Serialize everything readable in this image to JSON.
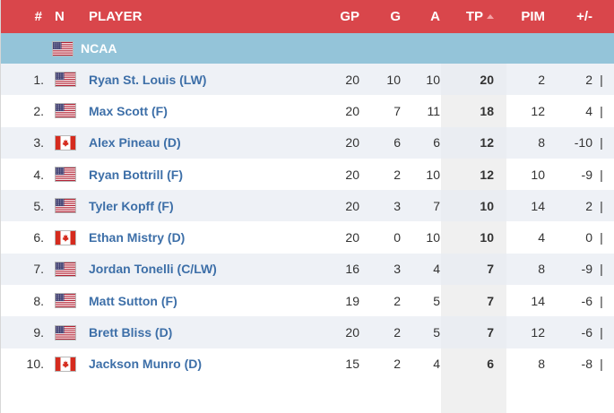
{
  "header": {
    "rank": "#",
    "nationality": "N",
    "player": "PLAYER",
    "gp": "GP",
    "g": "G",
    "a": "A",
    "tp": "TP",
    "pim": "PIM",
    "plus_minus": "+/-"
  },
  "group": {
    "label": "NCAA",
    "flag": "usa-flag-icon"
  },
  "colors": {
    "header_bg": "#d9464b",
    "group_bg": "#94c4d9",
    "link": "#3d6fa8",
    "tp_column_bg": "#f0f0f0"
  },
  "rows": [
    {
      "rank": "1.",
      "flag": "usa",
      "player": "Ryan St. Louis (LW)",
      "gp": "20",
      "g": "10",
      "a": "10",
      "tp": "20",
      "pim": "2",
      "pm": "2",
      "sep": "|"
    },
    {
      "rank": "2.",
      "flag": "usa",
      "player": "Max Scott (F)",
      "gp": "20",
      "g": "7",
      "a": "11",
      "tp": "18",
      "pim": "12",
      "pm": "4",
      "sep": "|"
    },
    {
      "rank": "3.",
      "flag": "can",
      "player": "Alex Pineau (D)",
      "gp": "20",
      "g": "6",
      "a": "6",
      "tp": "12",
      "pim": "8",
      "pm": "-10",
      "sep": "|"
    },
    {
      "rank": "4.",
      "flag": "usa",
      "player": "Ryan Bottrill (F)",
      "gp": "20",
      "g": "2",
      "a": "10",
      "tp": "12",
      "pim": "10",
      "pm": "-9",
      "sep": "|"
    },
    {
      "rank": "5.",
      "flag": "usa",
      "player": "Tyler Kopff (F)",
      "gp": "20",
      "g": "3",
      "a": "7",
      "tp": "10",
      "pim": "14",
      "pm": "2",
      "sep": "|"
    },
    {
      "rank": "6.",
      "flag": "can",
      "player": "Ethan Mistry (D)",
      "gp": "20",
      "g": "0",
      "a": "10",
      "tp": "10",
      "pim": "4",
      "pm": "0",
      "sep": "|"
    },
    {
      "rank": "7.",
      "flag": "usa",
      "player": "Jordan Tonelli (C/LW)",
      "gp": "16",
      "g": "3",
      "a": "4",
      "tp": "7",
      "pim": "8",
      "pm": "-9",
      "sep": "|"
    },
    {
      "rank": "8.",
      "flag": "usa",
      "player": "Matt Sutton (F)",
      "gp": "19",
      "g": "2",
      "a": "5",
      "tp": "7",
      "pim": "14",
      "pm": "-6",
      "sep": "|"
    },
    {
      "rank": "9.",
      "flag": "usa",
      "player": "Brett Bliss (D)",
      "gp": "20",
      "g": "2",
      "a": "5",
      "tp": "7",
      "pim": "12",
      "pm": "-6",
      "sep": "|"
    },
    {
      "rank": "10.",
      "flag": "can",
      "player": "Jackson Munro (D)",
      "gp": "15",
      "g": "2",
      "a": "4",
      "tp": "6",
      "pim": "8",
      "pm": "-8",
      "sep": "|"
    }
  ]
}
